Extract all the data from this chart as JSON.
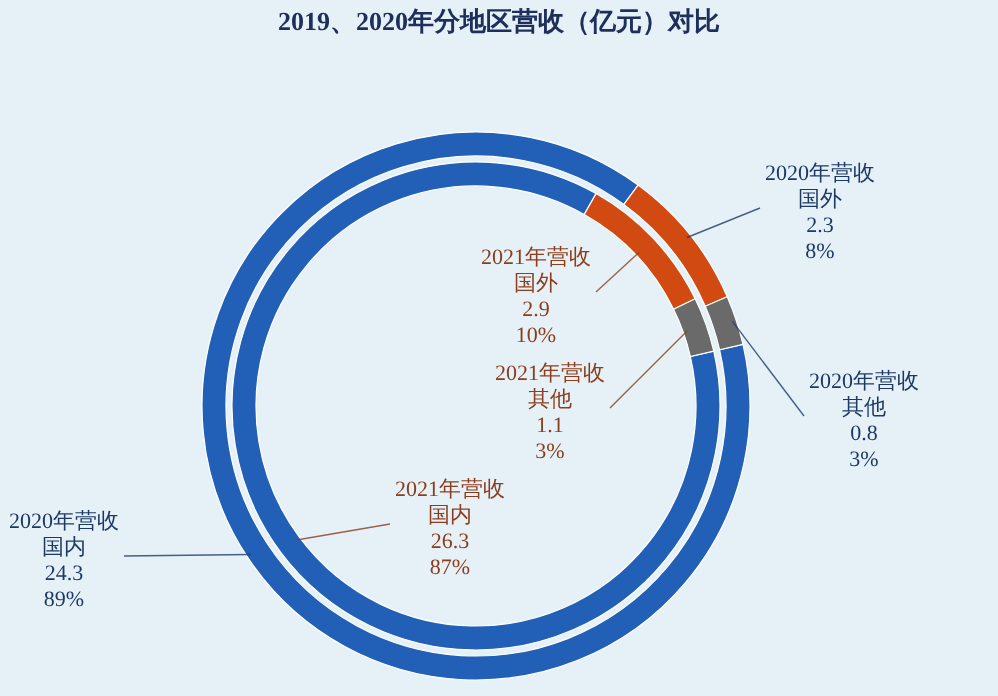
{
  "chart_data": [
    {
      "type": "donut",
      "title": "2019、2020年分地区营收（亿元）对比",
      "categories": [
        "2020年营收国内",
        "2020年营收国外",
        "2020年营收其他"
      ],
      "values": [
        24.3,
        2.3,
        0.8
      ],
      "value_labels": [
        "24.3\n89%",
        "2.3\n8%",
        "0.8\n3%"
      ],
      "colors": [
        "#2160b6",
        "#d04a12",
        "#6a6a6a"
      ]
    },
    {
      "type": "donut",
      "categories": [
        "2021年营收国内",
        "2021年营收国外",
        "2021年营收其他"
      ],
      "values": [
        26.3,
        2.9,
        1.1
      ],
      "value_labels": [
        "26.3\n87%",
        "2.9\n10%",
        "1.1\n3%"
      ],
      "colors": [
        "#2160b6",
        "#d04a12",
        "#6a6a6a"
      ]
    }
  ]
}
